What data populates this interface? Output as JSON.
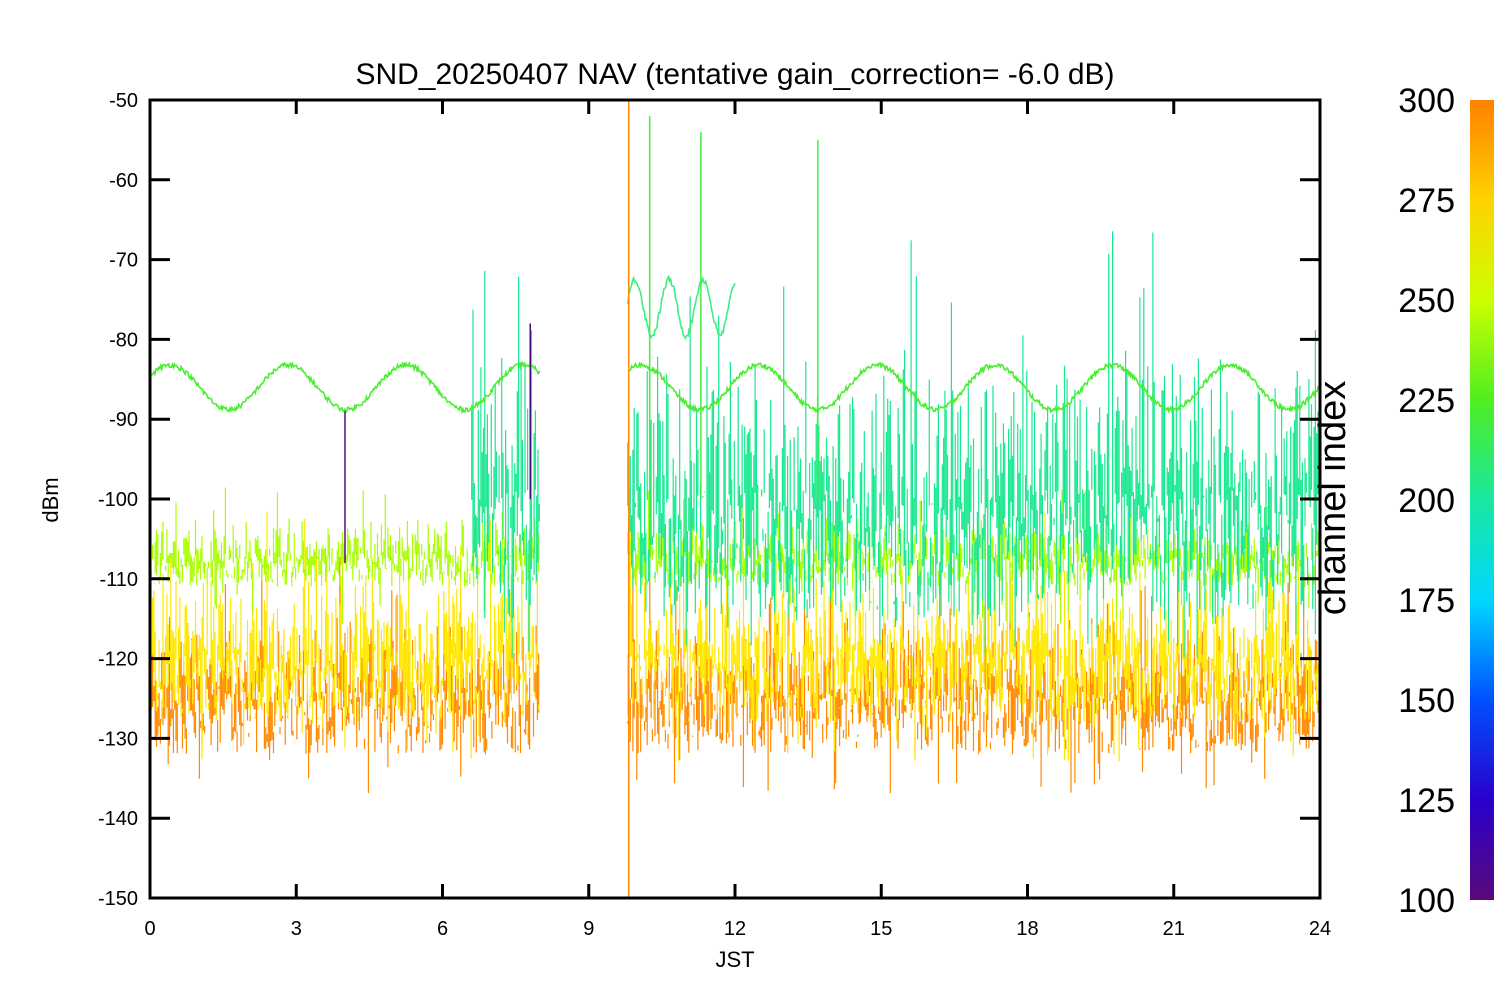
{
  "chart_data": {
    "type": "line",
    "title": "SND_20250407 NAV (tentative gain_correction= -6.0 dB)",
    "xlabel": "JST",
    "ylabel": "dBm",
    "xlim": [
      0,
      24
    ],
    "ylim": [
      -150,
      -50
    ],
    "xticks": [
      0,
      3,
      6,
      9,
      12,
      15,
      18,
      21,
      24
    ],
    "yticks": [
      -50,
      -60,
      -70,
      -80,
      -90,
      -100,
      -110,
      -120,
      -130,
      -140,
      -150
    ],
    "data_gap": [
      8.0,
      9.8
    ],
    "colorbar": {
      "label": "channel index",
      "range": [
        100,
        300
      ],
      "ticks": [
        100,
        125,
        150,
        175,
        200,
        225,
        250,
        275,
        300
      ],
      "colors": [
        "#5a0a7a",
        "#2a00cc",
        "#0050ff",
        "#00d8ff",
        "#18e8a0",
        "#50ee20",
        "#ccff00",
        "#ffd200",
        "#ff8000"
      ]
    },
    "series": [
      {
        "channel": 290,
        "color": "#ff8a00",
        "band": [
          -132,
          -118
        ],
        "segments": [
          [
            0,
            8
          ],
          [
            9.8,
            24
          ]
        ]
      },
      {
        "channel": 268,
        "color": "#ffe800",
        "band": [
          -128,
          -113
        ],
        "segments": [
          [
            0,
            8
          ],
          [
            9.8,
            24
          ]
        ]
      },
      {
        "channel": 245,
        "color": "#a8ff00",
        "band": [
          -111,
          -104
        ],
        "segments": [
          [
            0,
            8
          ],
          [
            9.8,
            24
          ]
        ]
      },
      {
        "channel": 205,
        "color": "#18e890",
        "band": [
          -115,
          -88
        ],
        "segments": [
          [
            6.6,
            8
          ],
          [
            9.8,
            24
          ]
        ]
      },
      {
        "channel": 240,
        "color": "#48ee30",
        "curve": "oscillating",
        "mean": -86,
        "amplitude": 2.8,
        "segments": [
          [
            0,
            8
          ],
          [
            9.8,
            24
          ]
        ]
      },
      {
        "channel": 215,
        "color": "#40ee80",
        "curve": "high-wave",
        "mean": -76,
        "amplitude": 3.5,
        "segments": [
          [
            9.8,
            12
          ]
        ]
      }
    ],
    "spikes": [
      {
        "x": 9.82,
        "min": -150,
        "max": -50,
        "color": "#ff8a00"
      },
      {
        "x": 10.25,
        "min": -110,
        "max": -52,
        "color": "#44ee44"
      },
      {
        "x": 11.3,
        "min": -100,
        "max": -54,
        "color": "#44ee44"
      },
      {
        "x": 13.7,
        "min": -100,
        "max": -55,
        "color": "#44ee44"
      },
      {
        "x": 7.8,
        "min": -100,
        "max": -78,
        "color": "#4a0a7a"
      },
      {
        "x": 4.0,
        "min": -108,
        "max": -89,
        "color": "#5a0a7a"
      }
    ]
  }
}
